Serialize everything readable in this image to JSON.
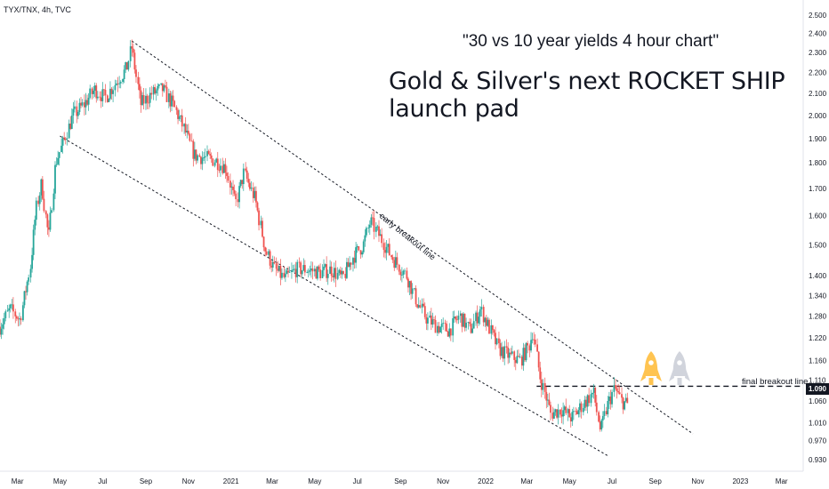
{
  "header": {
    "symbol": "TYX/TNX, 4h, TVC",
    "subtitle": "\"30 vs 10 year yields 4 hour chart\"",
    "title": "Gold & Silver's next ROCKET SHIP launch pad"
  },
  "price_tag": "1.090",
  "colors": {
    "up": "#26a69a",
    "down": "#ef5350",
    "rocket_gold": "#ffc451",
    "rocket_silver": "#d1d4dc",
    "text": "#131722"
  },
  "chart_data": {
    "type": "candlestick",
    "title": "Gold & Silver's next ROCKET SHIP launch pad",
    "subtitle": "\"30 vs 10 year yields 4 hour chart\"",
    "xlabel": "",
    "ylabel": "",
    "y_scale": "log",
    "ylim": [
      0.91,
      2.55
    ],
    "xlim": [
      "2020-02-05",
      "2023-04-01"
    ],
    "y_ticks": [
      "2.500",
      "2.400",
      "2.300",
      "2.200",
      "2.100",
      "2.000",
      "1.900",
      "1.800",
      "1.700",
      "1.600",
      "1.500",
      "1.400",
      "1.340",
      "1.280",
      "1.220",
      "1.160",
      "1.110",
      "1.060",
      "1.010",
      "0.970",
      "0.930"
    ],
    "x_ticks": [
      {
        "label": "Mar",
        "date": "2020-03-01"
      },
      {
        "label": "May",
        "date": "2020-05-01"
      },
      {
        "label": "Jul",
        "date": "2020-07-01"
      },
      {
        "label": "Sep",
        "date": "2020-09-01"
      },
      {
        "label": "Nov",
        "date": "2020-11-01"
      },
      {
        "label": "2021",
        "date": "2021-01-01"
      },
      {
        "label": "Mar",
        "date": "2021-03-01"
      },
      {
        "label": "May",
        "date": "2021-05-01"
      },
      {
        "label": "Jul",
        "date": "2021-07-01"
      },
      {
        "label": "Sep",
        "date": "2021-09-01"
      },
      {
        "label": "Nov",
        "date": "2021-11-01"
      },
      {
        "label": "2022",
        "date": "2022-01-01"
      },
      {
        "label": "Mar",
        "date": "2022-03-01"
      },
      {
        "label": "May",
        "date": "2022-05-01"
      },
      {
        "label": "Jul",
        "date": "2022-07-01"
      },
      {
        "label": "Sep",
        "date": "2022-09-01"
      },
      {
        "label": "Nov",
        "date": "2022-11-01"
      },
      {
        "label": "2023",
        "date": "2023-01-01"
      },
      {
        "label": "Mar",
        "date": "2023-03-01"
      }
    ],
    "series": [
      {
        "points": [
          {
            "date": "2020-02-05",
            "value": 1.25
          },
          {
            "date": "2020-02-20",
            "value": 1.3
          },
          {
            "date": "2020-03-05",
            "value": 1.27
          },
          {
            "date": "2020-03-20",
            "value": 1.43
          },
          {
            "date": "2020-03-28",
            "value": 1.62
          },
          {
            "date": "2020-04-05",
            "value": 1.72
          },
          {
            "date": "2020-04-15",
            "value": 1.52
          },
          {
            "date": "2020-04-25",
            "value": 1.8
          },
          {
            "date": "2020-05-08",
            "value": 1.9
          },
          {
            "date": "2020-05-20",
            "value": 2.0
          },
          {
            "date": "2020-06-05",
            "value": 2.05
          },
          {
            "date": "2020-06-20",
            "value": 2.12
          },
          {
            "date": "2020-07-05",
            "value": 2.08
          },
          {
            "date": "2020-07-20",
            "value": 2.15
          },
          {
            "date": "2020-08-05",
            "value": 2.22
          },
          {
            "date": "2020-08-12",
            "value": 2.33
          },
          {
            "date": "2020-08-25",
            "value": 2.05
          },
          {
            "date": "2020-09-10",
            "value": 2.1
          },
          {
            "date": "2020-09-25",
            "value": 2.12
          },
          {
            "date": "2020-10-10",
            "value": 2.05
          },
          {
            "date": "2020-10-25",
            "value": 1.95
          },
          {
            "date": "2020-11-10",
            "value": 1.83
          },
          {
            "date": "2020-11-25",
            "value": 1.82
          },
          {
            "date": "2020-12-10",
            "value": 1.81
          },
          {
            "date": "2020-12-25",
            "value": 1.78
          },
          {
            "date": "2021-01-08",
            "value": 1.64
          },
          {
            "date": "2021-01-20",
            "value": 1.76
          },
          {
            "date": "2021-02-05",
            "value": 1.66
          },
          {
            "date": "2021-02-20",
            "value": 1.48
          },
          {
            "date": "2021-03-05",
            "value": 1.42
          },
          {
            "date": "2021-03-20",
            "value": 1.39
          },
          {
            "date": "2021-04-05",
            "value": 1.42
          },
          {
            "date": "2021-04-20",
            "value": 1.42
          },
          {
            "date": "2021-05-10",
            "value": 1.41
          },
          {
            "date": "2021-05-25",
            "value": 1.42
          },
          {
            "date": "2021-06-10",
            "value": 1.39
          },
          {
            "date": "2021-06-25",
            "value": 1.46
          },
          {
            "date": "2021-07-10",
            "value": 1.5
          },
          {
            "date": "2021-07-20",
            "value": 1.58
          },
          {
            "date": "2021-08-05",
            "value": 1.52
          },
          {
            "date": "2021-08-20",
            "value": 1.46
          },
          {
            "date": "2021-09-10",
            "value": 1.4
          },
          {
            "date": "2021-09-25",
            "value": 1.32
          },
          {
            "date": "2021-10-10",
            "value": 1.27
          },
          {
            "date": "2021-10-25",
            "value": 1.25
          },
          {
            "date": "2021-11-10",
            "value": 1.24
          },
          {
            "date": "2021-11-25",
            "value": 1.28
          },
          {
            "date": "2021-12-10",
            "value": 1.24
          },
          {
            "date": "2021-12-25",
            "value": 1.3
          },
          {
            "date": "2022-01-08",
            "value": 1.24
          },
          {
            "date": "2022-01-20",
            "value": 1.19
          },
          {
            "date": "2022-02-05",
            "value": 1.17
          },
          {
            "date": "2022-02-20",
            "value": 1.16
          },
          {
            "date": "2022-03-05",
            "value": 1.2
          },
          {
            "date": "2022-03-10",
            "value": 1.24
          },
          {
            "date": "2022-03-20",
            "value": 1.12
          },
          {
            "date": "2022-04-05",
            "value": 1.03
          },
          {
            "date": "2022-04-20",
            "value": 1.04
          },
          {
            "date": "2022-05-05",
            "value": 1.02
          },
          {
            "date": "2022-05-20",
            "value": 1.05
          },
          {
            "date": "2022-06-05",
            "value": 1.08
          },
          {
            "date": "2022-06-15",
            "value": 0.99
          },
          {
            "date": "2022-06-25",
            "value": 1.05
          },
          {
            "date": "2022-07-05",
            "value": 1.09
          },
          {
            "date": "2022-07-15",
            "value": 1.06
          },
          {
            "date": "2022-07-25",
            "value": 1.05
          }
        ]
      }
    ],
    "trendlines": [
      {
        "style": "dotted",
        "from": {
          "date": "2020-08-12",
          "value": 2.36
        },
        "to": {
          "date": "2022-10-25",
          "value": 0.985
        }
      },
      {
        "style": "dotted",
        "from": {
          "date": "2020-05-01",
          "value": 1.91
        },
        "to": {
          "date": "2022-06-25",
          "value": 0.938
        }
      },
      {
        "style": "dashed",
        "from": {
          "date": "2022-03-15",
          "value": 1.095
        },
        "to": {
          "date": "2023-04-01",
          "value": 1.095
        }
      }
    ],
    "annotations": [
      {
        "text": "early breakout line"
      },
      {
        "text": "final breakout line"
      }
    ]
  }
}
